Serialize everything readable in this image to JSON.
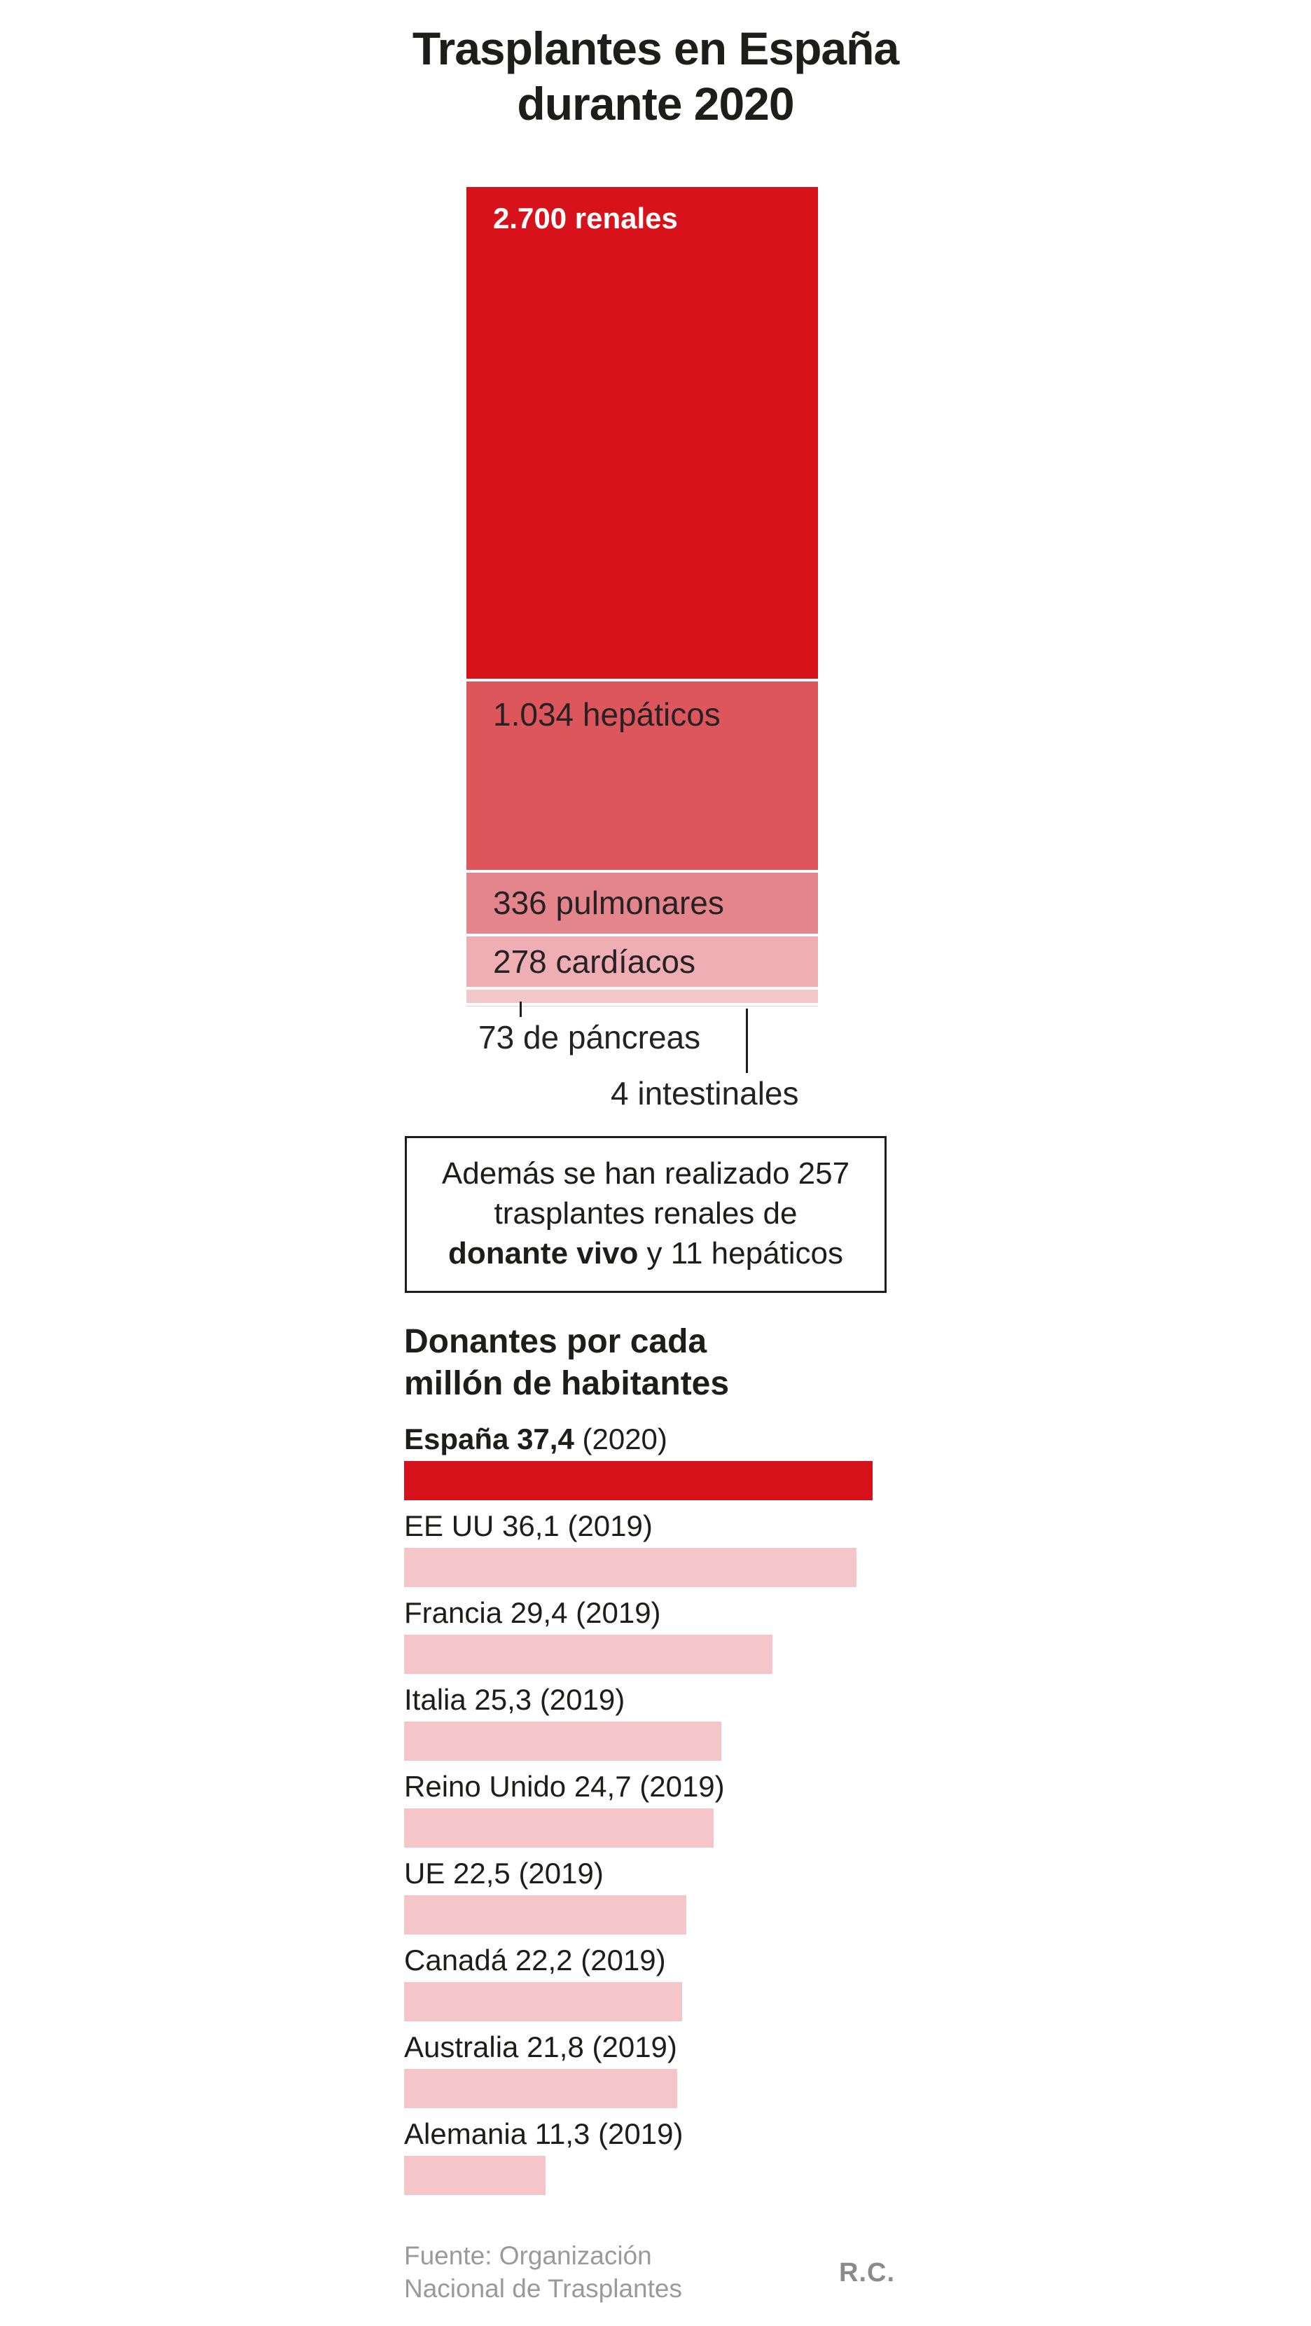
{
  "title": {
    "line1": "Trasplantes en España",
    "line2": "durante 2020"
  },
  "callouts": {
    "pancreas_label": "73 de páncreas",
    "intestinales_label": "4 intestinales"
  },
  "note_box": {
    "line1": "Además se han realizado 257",
    "line2": "trasplantes renales de",
    "line3_bold": "donante vivo",
    "line3_rest": " y 11 hepáticos"
  },
  "donors_heading": {
    "line1": "Donantes por cada",
    "line2": "millón de habitantes"
  },
  "footer": {
    "source_line1": "Fuente: Organización",
    "source_line2": "Nacional de Trasplantes",
    "credit": "R.C."
  },
  "colors": {
    "accent_red": "#d8121b",
    "pink_bar": "#f4c6c9",
    "text_dark": "#1d1d1b",
    "text_gray": "#9a9a9a"
  },
  "chart_data": [
    {
      "type": "bar",
      "variant": "stacked-vertical-proportional",
      "title": "Trasplantes en España durante 2020",
      "categories": [
        "renales",
        "hepáticos",
        "pulmonares",
        "cardíacos",
        "de páncreas",
        "intestinales"
      ],
      "values": [
        2700,
        1034,
        336,
        278,
        73,
        4
      ],
      "segments": [
        {
          "label": "2.700 renales",
          "value": 2700,
          "color": "#d8121b",
          "label_color": "#ffffff",
          "label_inside": true,
          "label_bold": true
        },
        {
          "label": "1.034 hepáticos",
          "value": 1034,
          "color": "#dc565c",
          "label_color": "#262223",
          "label_inside": true,
          "label_bold": false
        },
        {
          "label": "336 pulmonares",
          "value": 336,
          "color": "#e4858b",
          "label_color": "#262223",
          "label_inside": true,
          "label_bold": false
        },
        {
          "label": "278 cardíacos",
          "value": 278,
          "color": "#eeaeb3",
          "label_color": "#262223",
          "label_inside": true,
          "label_bold": false
        },
        {
          "label": "73 de páncreas",
          "value": 73,
          "color": "#f4c8cb",
          "label_inside": false
        },
        {
          "label": "4 intestinales",
          "value": 4,
          "color": "#f4c8cb",
          "label_inside": false
        }
      ]
    },
    {
      "type": "bar",
      "variant": "horizontal",
      "title": "Donantes por cada millón de habitantes",
      "xlim": [
        0,
        37.4
      ],
      "legend_position": "none",
      "grid": false,
      "bar_colors": {
        "highlight": "#d8121b",
        "normal": "#f4c6c9"
      },
      "rows": [
        {
          "country": "España",
          "value_label": "37,4",
          "value": 37.4,
          "year": "(2020)",
          "highlight": true
        },
        {
          "country": "EE UU",
          "value_label": "36,1",
          "value": 36.1,
          "year": "(2019)",
          "highlight": false
        },
        {
          "country": "Francia",
          "value_label": "29,4",
          "value": 29.4,
          "year": "(2019)",
          "highlight": false
        },
        {
          "country": "Italia",
          "value_label": "25,3",
          "value": 25.3,
          "year": "(2019)",
          "highlight": false
        },
        {
          "country": "Reino Unido",
          "value_label": "24,7",
          "value": 24.7,
          "year": "(2019)",
          "highlight": false
        },
        {
          "country": "UE",
          "value_label": "22,5",
          "value": 22.5,
          "year": "(2019)",
          "highlight": false
        },
        {
          "country": "Canadá",
          "value_label": "22,2",
          "value": 22.2,
          "year": "(2019)",
          "highlight": false
        },
        {
          "country": "Australia",
          "value_label": "21,8",
          "value": 21.8,
          "year": "(2019)",
          "highlight": false
        },
        {
          "country": "Alemania",
          "value_label": "11,3",
          "value": 11.3,
          "year": "(2019)",
          "highlight": false
        }
      ]
    }
  ]
}
